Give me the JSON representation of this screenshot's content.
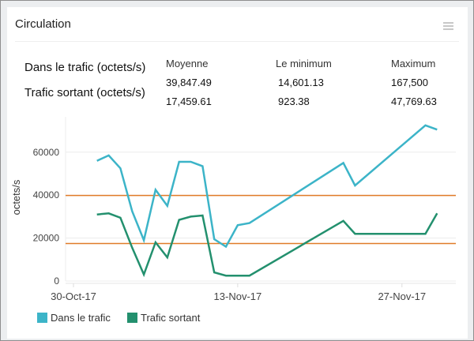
{
  "widget": {
    "title": "Circulation",
    "menu_icon": "hamburger-menu-icon"
  },
  "stats": {
    "columns": [
      "Moyenne",
      "Le minimum",
      "Maximum"
    ],
    "rows": [
      {
        "label": "Dans le trafic (octets/s)",
        "values": [
          "39,847.49",
          "14,601.13",
          "167,500"
        ]
      },
      {
        "label": "Trafic sortant (octets/s)",
        "values": [
          "17,459.61",
          "923.38",
          "47,769.63"
        ]
      }
    ]
  },
  "chart_data": {
    "type": "line",
    "title": "",
    "xlabel": "",
    "ylabel": "octets/s",
    "ylim": [
      0,
      75000
    ],
    "yticks": [
      "0",
      "20000",
      "40000",
      "60000"
    ],
    "xticks": [
      "30-Oct-17",
      "13-Nov-17",
      "27-Nov-17"
    ],
    "grid": true,
    "legend_position": "bottom",
    "x": [
      "01-Nov-17",
      "02-Nov-17",
      "03-Nov-17",
      "04-Nov-17",
      "05-Nov-17",
      "06-Nov-17",
      "07-Nov-17",
      "08-Nov-17",
      "09-Nov-17",
      "10-Nov-17",
      "11-Nov-17",
      "12-Nov-17",
      "13-Nov-17",
      "14-Nov-17",
      "22-Nov-17",
      "23-Nov-17",
      "29-Nov-17",
      "30-Nov-17"
    ],
    "series": [
      {
        "name": "Dans le trafic",
        "color": "#3cb4c8",
        "values": [
          56000,
          58500,
          52500,
          32500,
          19000,
          42500,
          35000,
          55500,
          55500,
          53500,
          19500,
          16000,
          26000,
          27000,
          55000,
          44500,
          72500,
          70500
        ]
      },
      {
        "name": "Trafic sortant",
        "color": "#23906e",
        "values": [
          31000,
          31500,
          29500,
          15500,
          3000,
          18000,
          11000,
          28500,
          30000,
          30500,
          4000,
          2500,
          2500,
          2500,
          28000,
          22000,
          22000,
          31500
        ]
      }
    ],
    "reference_lines": [
      {
        "name": "Moyenne Dans le trafic",
        "value": 39847.49,
        "color": "#e07b28"
      },
      {
        "name": "Moyenne Trafic sortant",
        "value": 17459.61,
        "color": "#e07b28"
      }
    ]
  },
  "legend": {
    "items": [
      {
        "label": "Dans le trafic",
        "color": "#3cb4c8"
      },
      {
        "label": "Trafic sortant",
        "color": "#23906e"
      }
    ]
  }
}
